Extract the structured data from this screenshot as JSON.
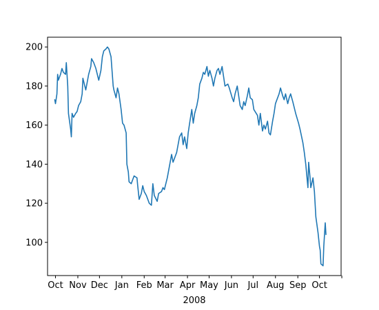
{
  "chart_data": {
    "type": "line",
    "title": "",
    "xlabel": "2008",
    "ylabel": "",
    "grid": false,
    "legend": "none",
    "xlim": [
      "2007-09-20",
      "2008-10-31"
    ],
    "ylim": [
      83,
      205
    ],
    "y_ticks": [
      100,
      120,
      140,
      160,
      180,
      200
    ],
    "x_ticks": [
      {
        "date": "2007-10-01",
        "label": "Oct"
      },
      {
        "date": "2007-11-01",
        "label": "Nov"
      },
      {
        "date": "2007-12-01",
        "label": "Dec"
      },
      {
        "date": "2008-01-01",
        "label": "Jan"
      },
      {
        "date": "2008-02-01",
        "label": "Feb"
      },
      {
        "date": "2008-03-01",
        "label": "Mar"
      },
      {
        "date": "2008-04-01",
        "label": "Apr"
      },
      {
        "date": "2008-05-01",
        "label": "May"
      },
      {
        "date": "2008-06-01",
        "label": "Jun"
      },
      {
        "date": "2008-07-01",
        "label": "Jul"
      },
      {
        "date": "2008-08-01",
        "label": "Aug"
      },
      {
        "date": "2008-09-01",
        "label": "Sep"
      },
      {
        "date": "2008-10-01",
        "label": "Oct"
      },
      {
        "date": "2008-11-01",
        "label": ""
      }
    ],
    "series": [
      {
        "color": "#1f77b4",
        "points": [
          [
            "2007-09-30",
            173
          ],
          [
            "2007-10-01",
            171
          ],
          [
            "2007-10-03",
            176
          ],
          [
            "2007-10-04",
            186
          ],
          [
            "2007-10-05",
            183
          ],
          [
            "2007-10-08",
            186
          ],
          [
            "2007-10-10",
            189
          ],
          [
            "2007-10-12",
            187
          ],
          [
            "2007-10-15",
            186
          ],
          [
            "2007-10-16",
            192
          ],
          [
            "2007-10-18",
            180
          ],
          [
            "2007-10-19",
            166
          ],
          [
            "2007-10-22",
            158
          ],
          [
            "2007-10-23",
            154
          ],
          [
            "2007-10-24",
            166
          ],
          [
            "2007-10-26",
            164
          ],
          [
            "2007-10-29",
            166
          ],
          [
            "2007-10-31",
            167
          ],
          [
            "2007-11-02",
            170
          ],
          [
            "2007-11-05",
            172
          ],
          [
            "2007-11-07",
            176
          ],
          [
            "2007-11-08",
            184
          ],
          [
            "2007-11-12",
            178
          ],
          [
            "2007-11-14",
            182
          ],
          [
            "2007-11-16",
            186
          ],
          [
            "2007-11-19",
            190
          ],
          [
            "2007-11-20",
            194
          ],
          [
            "2007-11-23",
            192
          ],
          [
            "2007-11-26",
            189
          ],
          [
            "2007-11-28",
            186
          ],
          [
            "2007-11-30",
            183
          ],
          [
            "2007-12-03",
            188
          ],
          [
            "2007-12-05",
            195
          ],
          [
            "2007-12-07",
            198
          ],
          [
            "2007-12-10",
            199
          ],
          [
            "2007-12-12",
            200
          ],
          [
            "2007-12-14",
            199
          ],
          [
            "2007-12-17",
            195
          ],
          [
            "2007-12-19",
            185
          ],
          [
            "2007-12-20",
            180
          ],
          [
            "2007-12-21",
            178
          ],
          [
            "2007-12-24",
            174
          ],
          [
            "2007-12-26",
            179
          ],
          [
            "2007-12-28",
            176
          ],
          [
            "2007-12-31",
            168
          ],
          [
            "2008-01-02",
            161
          ],
          [
            "2008-01-04",
            160
          ],
          [
            "2008-01-07",
            156
          ],
          [
            "2008-01-08",
            140
          ],
          [
            "2008-01-10",
            136
          ],
          [
            "2008-01-11",
            131
          ],
          [
            "2008-01-14",
            130
          ],
          [
            "2008-01-16",
            132
          ],
          [
            "2008-01-18",
            134
          ],
          [
            "2008-01-22",
            133
          ],
          [
            "2008-01-23",
            129
          ],
          [
            "2008-01-25",
            122
          ],
          [
            "2008-01-28",
            125
          ],
          [
            "2008-01-30",
            129
          ],
          [
            "2008-02-01",
            126
          ],
          [
            "2008-02-04",
            124
          ],
          [
            "2008-02-06",
            122
          ],
          [
            "2008-02-08",
            120
          ],
          [
            "2008-02-11",
            119
          ],
          [
            "2008-02-13",
            130
          ],
          [
            "2008-02-15",
            124
          ],
          [
            "2008-02-19",
            121
          ],
          [
            "2008-02-21",
            125
          ],
          [
            "2008-02-25",
            126
          ],
          [
            "2008-02-27",
            128
          ],
          [
            "2008-02-29",
            127
          ],
          [
            "2008-03-04",
            133
          ],
          [
            "2008-03-07",
            139
          ],
          [
            "2008-03-10",
            145
          ],
          [
            "2008-03-12",
            141
          ],
          [
            "2008-03-14",
            143
          ],
          [
            "2008-03-17",
            146
          ],
          [
            "2008-03-19",
            150
          ],
          [
            "2008-03-21",
            154
          ],
          [
            "2008-03-24",
            156
          ],
          [
            "2008-03-26",
            150
          ],
          [
            "2008-03-28",
            154
          ],
          [
            "2008-03-31",
            148
          ],
          [
            "2008-04-02",
            156
          ],
          [
            "2008-04-04",
            161
          ],
          [
            "2008-04-07",
            168
          ],
          [
            "2008-04-09",
            161
          ],
          [
            "2008-04-11",
            166
          ],
          [
            "2008-04-14",
            170
          ],
          [
            "2008-04-16",
            174
          ],
          [
            "2008-04-18",
            181
          ],
          [
            "2008-04-21",
            184
          ],
          [
            "2008-04-23",
            187
          ],
          [
            "2008-04-25",
            186
          ],
          [
            "2008-04-28",
            190
          ],
          [
            "2008-04-30",
            185
          ],
          [
            "2008-05-02",
            188
          ],
          [
            "2008-05-05",
            184
          ],
          [
            "2008-05-07",
            180
          ],
          [
            "2008-05-09",
            184
          ],
          [
            "2008-05-12",
            188
          ],
          [
            "2008-05-14",
            189
          ],
          [
            "2008-05-16",
            186
          ],
          [
            "2008-05-19",
            190
          ],
          [
            "2008-05-21",
            185
          ],
          [
            "2008-05-23",
            180
          ],
          [
            "2008-05-27",
            181
          ],
          [
            "2008-05-29",
            179
          ],
          [
            "2008-06-02",
            174
          ],
          [
            "2008-06-04",
            172
          ],
          [
            "2008-06-06",
            176
          ],
          [
            "2008-06-09",
            180
          ],
          [
            "2008-06-11",
            175
          ],
          [
            "2008-06-13",
            170
          ],
          [
            "2008-06-16",
            168
          ],
          [
            "2008-06-18",
            172
          ],
          [
            "2008-06-20",
            170
          ],
          [
            "2008-06-23",
            175
          ],
          [
            "2008-06-25",
            179
          ],
          [
            "2008-06-27",
            174
          ],
          [
            "2008-06-30",
            173
          ],
          [
            "2008-07-02",
            168
          ],
          [
            "2008-07-07",
            165
          ],
          [
            "2008-07-09",
            160
          ],
          [
            "2008-07-11",
            166
          ],
          [
            "2008-07-14",
            157
          ],
          [
            "2008-07-16",
            160
          ],
          [
            "2008-07-18",
            158
          ],
          [
            "2008-07-21",
            162
          ],
          [
            "2008-07-23",
            156
          ],
          [
            "2008-07-25",
            155
          ],
          [
            "2008-07-28",
            162
          ],
          [
            "2008-07-30",
            166
          ],
          [
            "2008-08-01",
            171
          ],
          [
            "2008-08-04",
            174
          ],
          [
            "2008-08-06",
            176
          ],
          [
            "2008-08-08",
            179
          ],
          [
            "2008-08-11",
            175
          ],
          [
            "2008-08-13",
            173
          ],
          [
            "2008-08-15",
            176
          ],
          [
            "2008-08-18",
            171
          ],
          [
            "2008-08-20",
            174
          ],
          [
            "2008-08-22",
            176
          ],
          [
            "2008-08-25",
            172
          ],
          [
            "2008-08-27",
            169
          ],
          [
            "2008-08-29",
            166
          ],
          [
            "2008-09-02",
            161
          ],
          [
            "2008-09-04",
            158
          ],
          [
            "2008-09-08",
            151
          ],
          [
            "2008-09-10",
            146
          ],
          [
            "2008-09-12",
            140
          ],
          [
            "2008-09-15",
            128
          ],
          [
            "2008-09-16",
            141
          ],
          [
            "2008-09-18",
            133
          ],
          [
            "2008-09-19",
            128
          ],
          [
            "2008-09-22",
            133
          ],
          [
            "2008-09-24",
            126
          ],
          [
            "2008-09-26",
            113
          ],
          [
            "2008-09-29",
            105
          ],
          [
            "2008-10-01",
            98
          ],
          [
            "2008-10-02",
            96
          ],
          [
            "2008-10-03",
            89
          ],
          [
            "2008-10-06",
            88
          ],
          [
            "2008-10-07",
            98
          ],
          [
            "2008-10-08",
            104
          ],
          [
            "2008-10-09",
            110
          ],
          [
            "2008-10-10",
            104
          ]
        ]
      }
    ]
  }
}
